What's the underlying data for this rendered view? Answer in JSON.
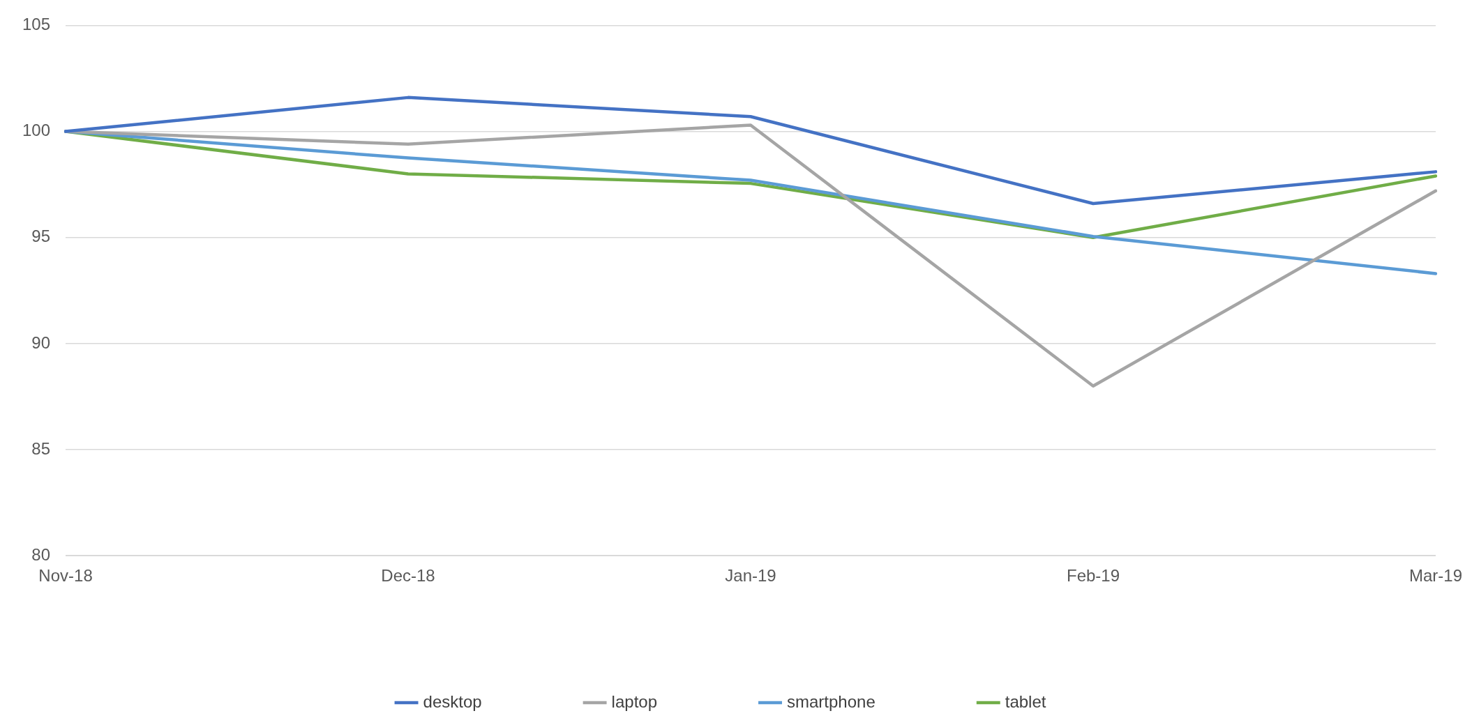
{
  "chart_data": {
    "type": "line",
    "categories": [
      "Nov-18",
      "Dec-18",
      "Jan-19",
      "Feb-19",
      "Mar-19"
    ],
    "series": [
      {
        "name": "desktop",
        "color": "#4472c4",
        "values": [
          100,
          101.6,
          100.7,
          96.6,
          98.1
        ]
      },
      {
        "name": "laptop",
        "color": "#a5a5a5",
        "values": [
          100,
          99.4,
          100.3,
          88.0,
          97.2
        ]
      },
      {
        "name": "smartphone",
        "color": "#5b9bd5",
        "values": [
          100,
          98.75,
          97.7,
          95.05,
          93.3
        ]
      },
      {
        "name": "tablet",
        "color": "#70ad47",
        "values": [
          100,
          98.0,
          97.55,
          95.0,
          97.9
        ]
      }
    ],
    "ylim": [
      80,
      105
    ],
    "yticks": [
      80,
      85,
      90,
      95,
      100,
      105
    ],
    "grid": "y",
    "legend": "bottom",
    "marker": "none",
    "line_style": "solid"
  }
}
